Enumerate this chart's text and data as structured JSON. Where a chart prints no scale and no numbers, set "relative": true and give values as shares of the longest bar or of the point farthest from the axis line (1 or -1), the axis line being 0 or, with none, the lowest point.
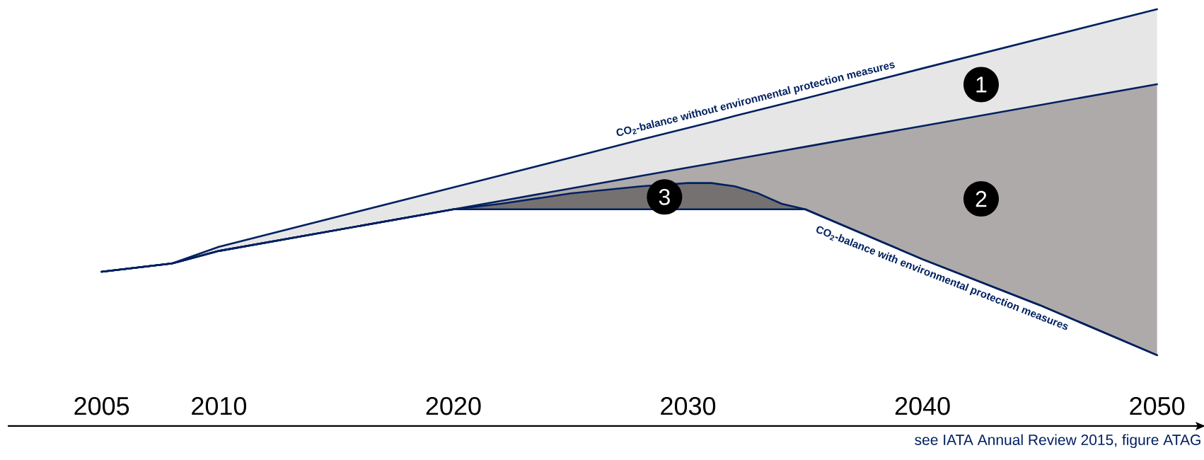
{
  "chart_data": {
    "type": "area",
    "relative": true,
    "stacked": true,
    "x": [
      2005,
      2008,
      2010,
      2020,
      2022,
      2025,
      2028,
      2030,
      2031,
      2032,
      2033,
      2034,
      2035,
      2040,
      2045,
      2050
    ],
    "xlim": [
      2001,
      2052
    ],
    "xticks": [
      2005,
      2010,
      2020,
      2030,
      2040,
      2050
    ],
    "series": [
      {
        "color": "#ffffff",
        "values": [
          0.37,
          0.39,
          0.42,
          0.52,
          0.52,
          0.52,
          0.52,
          0.52,
          0.52,
          0.52,
          0.52,
          0.52,
          0.52,
          0.4,
          0.29,
          0.17
        ]
      },
      {
        "name": "3",
        "color": "#767171",
        "values": [
          0,
          0,
          0,
          0,
          0.013,
          0.038,
          0.055,
          0.063,
          0.063,
          0.055,
          0.038,
          0.013,
          0,
          0,
          0,
          0
        ]
      },
      {
        "name": "2",
        "color": "#aeaaaa",
        "values": [
          0,
          0,
          0,
          0,
          0.007,
          0.012,
          0.025,
          0.037,
          0.047,
          0.065,
          0.092,
          0.127,
          0.15,
          0.32,
          0.48,
          0.65
        ]
      },
      {
        "name": "1",
        "color": "#e7e6e6",
        "values": [
          0,
          0,
          0.01,
          0.0525,
          0.061,
          0.074,
          0.087,
          0.095,
          0.099,
          0.104,
          0.108,
          0.112,
          0.116,
          0.138,
          0.159,
          0.18
        ]
      }
    ],
    "annotations": [
      {
        "text": "CO$_{2}$-balance without environmental protection measures",
        "x": 2033,
        "y": 0.758
      },
      {
        "text": "CO$_{2}$-balance with environmental protection measures",
        "x": 2041,
        "y": 0.38
      },
      "see IATA Annual Review 2015, figure ATAG"
    ]
  }
}
